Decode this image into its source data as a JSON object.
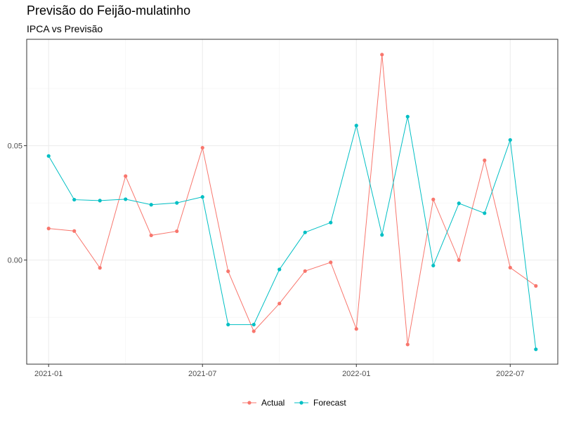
{
  "title": "Previsão do Feijão-mulatinho",
  "subtitle": "IPCA vs Previsão",
  "chart_data": {
    "type": "line",
    "title": "Previsão do Feijão-mulatinho",
    "subtitle": "IPCA vs Previsão",
    "xlabel": "",
    "ylabel": "",
    "x": [
      "2021-01",
      "2021-02",
      "2021-03",
      "2021-04",
      "2021-05",
      "2021-06",
      "2021-07",
      "2021-08",
      "2021-09",
      "2021-10",
      "2021-11",
      "2021-12",
      "2022-01",
      "2022-02",
      "2022-03",
      "2022-04",
      "2022-05",
      "2022-06",
      "2022-07",
      "2022-08"
    ],
    "x_ticks": [
      "2021-01",
      "2021-07",
      "2022-01",
      "2022-07"
    ],
    "y_ticks": [
      0.0,
      0.05
    ],
    "y_tick_labels": [
      "0.00",
      "0.05"
    ],
    "ylim": [
      -0.0455,
      0.0965
    ],
    "grid": true,
    "legend_position": "bottom",
    "series": [
      {
        "name": "Actual",
        "color": "#F8766D",
        "values": [
          0.0138,
          0.0127,
          -0.0034,
          0.0367,
          0.0108,
          0.0126,
          0.0491,
          -0.0049,
          -0.0311,
          -0.019,
          -0.0048,
          -0.001,
          -0.0301,
          0.0898,
          -0.0369,
          0.0265,
          0.0,
          0.0436,
          -0.0033,
          -0.0113
        ]
      },
      {
        "name": "Forecast",
        "color": "#00BFC4",
        "values": [
          0.0455,
          0.0264,
          0.026,
          0.0266,
          0.0242,
          0.025,
          0.0276,
          -0.0282,
          -0.0282,
          -0.0041,
          0.0121,
          0.0164,
          0.0588,
          0.011,
          0.0627,
          -0.0024,
          0.0248,
          0.0205,
          0.0525,
          -0.039
        ]
      }
    ]
  }
}
